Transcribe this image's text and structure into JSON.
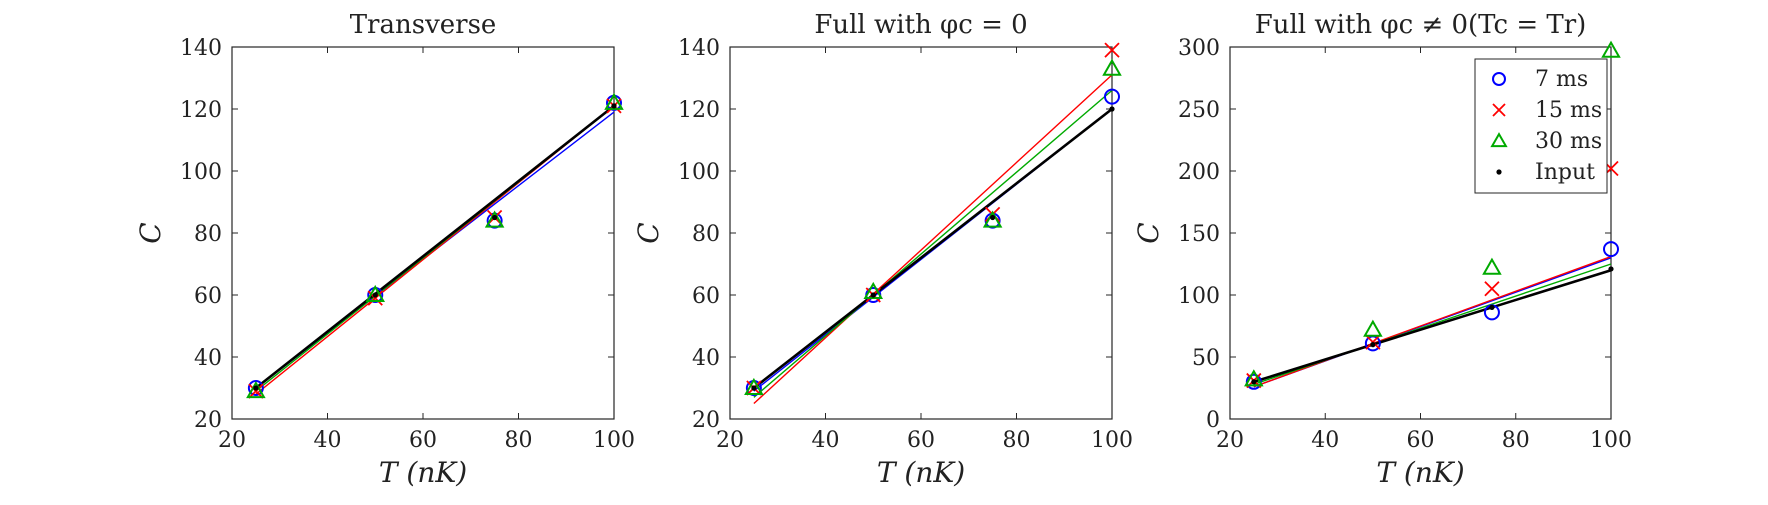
{
  "chart_data": [
    {
      "type": "scatter",
      "title": "Transverse",
      "xlabel": "T (nK)",
      "ylabel": "C",
      "xlim": [
        20,
        100
      ],
      "ylim": [
        20,
        140
      ],
      "xticks": [
        20,
        40,
        60,
        80,
        100
      ],
      "yticks": [
        20,
        40,
        60,
        80,
        100,
        120,
        140
      ],
      "legend": null,
      "series": [
        {
          "name": "7 ms",
          "marker": "circle",
          "color": "#0000ff",
          "x": [
            25,
            50,
            75,
            100
          ],
          "y": [
            30,
            60,
            84,
            122
          ],
          "fit": {
            "color": "#0000ff",
            "x": [
              25,
              100
            ],
            "y": [
              30,
              119
            ]
          }
        },
        {
          "name": "15 ms",
          "marker": "x",
          "color": "#ff0000",
          "x": [
            25,
            50,
            75,
            100
          ],
          "y": [
            29,
            59,
            85,
            121
          ],
          "fit": {
            "color": "#ff0000",
            "x": [
              25,
              100
            ],
            "y": [
              28,
              121
            ]
          }
        },
        {
          "name": "30 ms",
          "marker": "triangle",
          "color": "#00aa00",
          "x": [
            25,
            50,
            75,
            100
          ],
          "y": [
            29,
            60,
            84,
            122
          ],
          "fit": {
            "color": "#00aa00",
            "x": [
              25,
              100
            ],
            "y": [
              29,
              121
            ]
          }
        },
        {
          "name": "Input",
          "marker": "dot",
          "color": "#000000",
          "x": [
            25,
            50,
            75,
            100
          ],
          "y": [
            30,
            60,
            85,
            121
          ],
          "fit": {
            "color": "#000000",
            "x": [
              25,
              100
            ],
            "y": [
              30,
              121
            ]
          }
        }
      ]
    },
    {
      "type": "scatter",
      "title": "Full with φc = 0",
      "xlabel": "T (nK)",
      "ylabel": "C",
      "xlim": [
        20,
        100
      ],
      "ylim": [
        20,
        140
      ],
      "xticks": [
        20,
        40,
        60,
        80,
        100
      ],
      "yticks": [
        20,
        40,
        60,
        80,
        100,
        120,
        140
      ],
      "legend": null,
      "series": [
        {
          "name": "7 ms",
          "marker": "circle",
          "color": "#0000ff",
          "x": [
            25,
            50,
            75,
            100
          ],
          "y": [
            30,
            60,
            84,
            124
          ],
          "fit": {
            "color": "#0000ff",
            "x": [
              25,
              100
            ],
            "y": [
              29,
              120
            ]
          }
        },
        {
          "name": "15 ms",
          "marker": "x",
          "color": "#ff0000",
          "x": [
            25,
            50,
            75,
            100
          ],
          "y": [
            30,
            60,
            86,
            139
          ],
          "fit": {
            "color": "#ff0000",
            "x": [
              25,
              100
            ],
            "y": [
              25,
              131
            ]
          }
        },
        {
          "name": "30 ms",
          "marker": "triangle",
          "color": "#00aa00",
          "x": [
            25,
            50,
            75,
            100
          ],
          "y": [
            30,
            61,
            84,
            133
          ],
          "fit": {
            "color": "#00aa00",
            "x": [
              25,
              100
            ],
            "y": [
              27,
              126
            ]
          }
        },
        {
          "name": "Input",
          "marker": "dot",
          "color": "#000000",
          "x": [
            25,
            50,
            75,
            100
          ],
          "y": [
            30,
            60,
            85,
            120
          ],
          "fit": {
            "color": "#000000",
            "x": [
              25,
              100
            ],
            "y": [
              30,
              120
            ]
          }
        }
      ]
    },
    {
      "type": "scatter",
      "title": "Full with φc ≠ 0(Tc = Tr)",
      "xlabel": "T (nK)",
      "ylabel": "C",
      "xlim": [
        20,
        100
      ],
      "ylim": [
        0,
        300
      ],
      "xticks": [
        20,
        40,
        60,
        80,
        100
      ],
      "yticks": [
        0,
        50,
        100,
        150,
        200,
        250,
        300
      ],
      "legend": "top-right",
      "series": [
        {
          "name": "7 ms",
          "marker": "circle",
          "color": "#0000ff",
          "x": [
            25,
            50,
            75,
            100
          ],
          "y": [
            30,
            61,
            86,
            137
          ],
          "fit": {
            "color": "#0000ff",
            "x": [
              25,
              100
            ],
            "y": [
              26,
              130
            ]
          }
        },
        {
          "name": "15 ms",
          "marker": "x",
          "color": "#ff0000",
          "x": [
            25,
            50,
            75,
            100
          ],
          "y": [
            31,
            62,
            105,
            202
          ],
          "fit": {
            "color": "#ff0000",
            "x": [
              25,
              100
            ],
            "y": [
              26,
              131
            ]
          }
        },
        {
          "name": "30 ms",
          "marker": "triangle",
          "color": "#00aa00",
          "x": [
            25,
            50,
            75,
            100
          ],
          "y": [
            32,
            72,
            122,
            297
          ],
          "fit": {
            "color": "#00aa00",
            "x": [
              25,
              100
            ],
            "y": [
              28,
              125
            ]
          }
        },
        {
          "name": "Input",
          "marker": "dot",
          "color": "#000000",
          "x": [
            25,
            50,
            75,
            100
          ],
          "y": [
            30,
            60,
            90,
            121
          ],
          "fit": {
            "color": "#000000",
            "x": [
              25,
              100
            ],
            "y": [
              30,
              120
            ]
          }
        }
      ],
      "legend_entries": [
        {
          "label": "7 ms",
          "marker": "circle",
          "color": "#0000ff"
        },
        {
          "label": "15 ms",
          "marker": "x",
          "color": "#ff0000"
        },
        {
          "label": "30 ms",
          "marker": "triangle",
          "color": "#00aa00"
        },
        {
          "label": "Input",
          "marker": "dot",
          "color": "#000000"
        }
      ]
    }
  ]
}
